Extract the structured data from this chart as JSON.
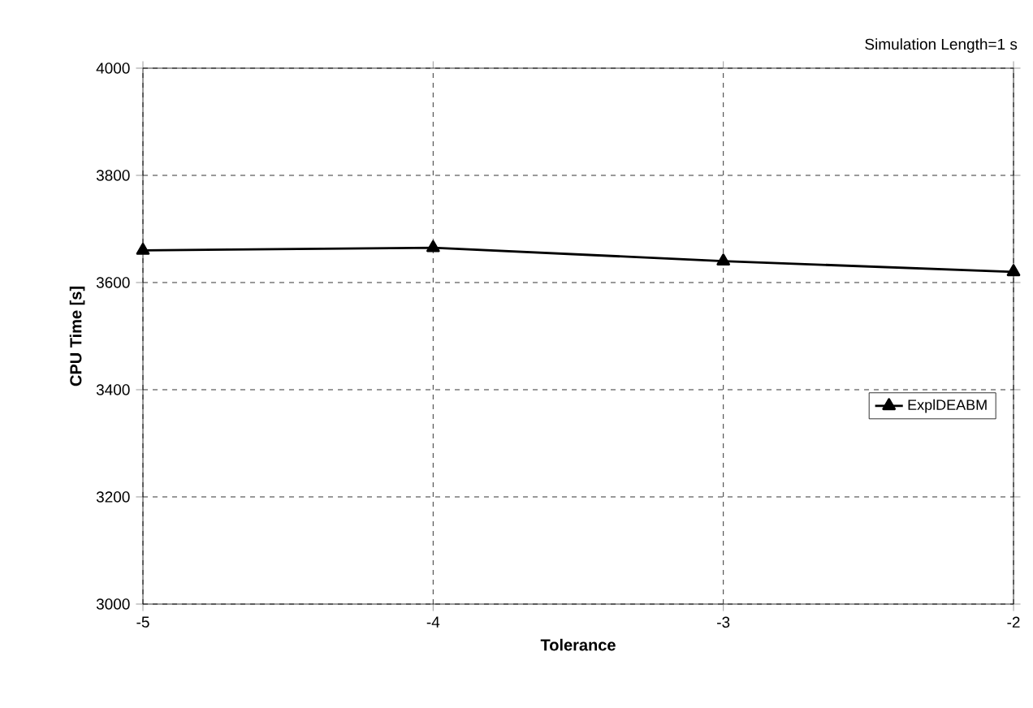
{
  "chart_data": {
    "type": "line",
    "xlabel": "Tolerance",
    "ylabel": "CPU Time [s]",
    "annotations": [
      "Simulation Length=1 s"
    ],
    "x": [
      -5,
      -4,
      -3,
      -2
    ],
    "series": [
      {
        "name": "ExplDEABM",
        "color": "#000000",
        "values": [
          3660,
          3665,
          3640,
          3620
        ]
      }
    ],
    "xlim": [
      -5,
      -2
    ],
    "xticks": [
      -5,
      -4,
      -3,
      -2
    ],
    "ylim": [
      3000,
      4000
    ],
    "yticks": [
      3000,
      3200,
      3400,
      3600,
      3800,
      4000
    ],
    "grid": true,
    "legend": "right",
    "marker": "triangle",
    "line_style": "solid"
  }
}
